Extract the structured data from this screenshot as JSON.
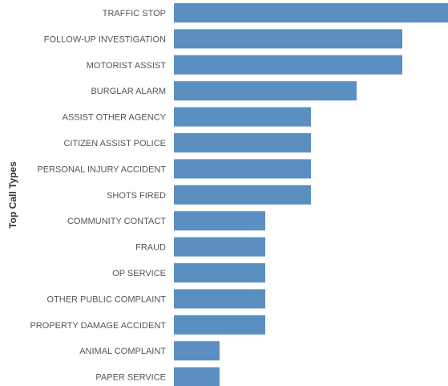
{
  "chart_data": {
    "type": "bar",
    "orientation": "horizontal",
    "ylabel": "Top Call Types",
    "categories": [
      "TRAFFIC STOP",
      "FOLLOW-UP INVESTIGATION",
      "MOTORIST ASSIST",
      "BURGLAR ALARM",
      "ASSIST OTHER AGENCY",
      "CITIZEN ASSIST POLICE",
      "PERSONAL INJURY ACCIDENT",
      "SHOTS FIRED",
      "COMMUNITY CONTACT",
      "FRAUD",
      "OP SERVICE",
      "OTHER PUBLIC COMPLAINT",
      "PROPERTY DAMAGE ACCIDENT",
      "ANIMAL COMPLAINT",
      "PAPER SERVICE"
    ],
    "values": [
      6,
      5,
      5,
      4,
      3,
      3,
      3,
      3,
      2,
      2,
      2,
      2,
      2,
      1,
      1
    ],
    "xlim": [
      0,
      6
    ],
    "bar_color": "#5b8fc2",
    "grid": false,
    "legend": "none"
  }
}
